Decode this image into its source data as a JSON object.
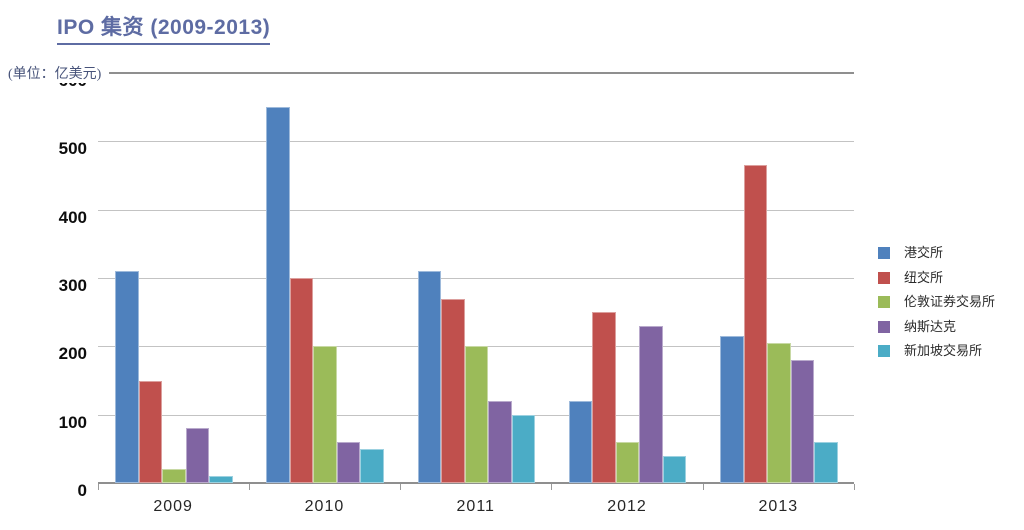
{
  "title": "IPO 集资 (2009-2013)",
  "unit_label": "(单位：亿美元)",
  "chart_data": {
    "type": "bar",
    "title": "IPO 集资 (2009-2013)",
    "unit": "(单位：亿美元)",
    "categories": [
      "2009",
      "2010",
      "2011",
      "2012",
      "2013"
    ],
    "series": [
      {
        "name": "港交所",
        "color": "#4F81BD",
        "values": [
          310,
          550,
          310,
          120,
          215
        ]
      },
      {
        "name": "纽交所",
        "color": "#C0504D",
        "values": [
          150,
          300,
          270,
          250,
          465
        ]
      },
      {
        "name": "伦敦证券交易所",
        "color": "#9BBB59",
        "values": [
          20,
          200,
          200,
          60,
          205
        ]
      },
      {
        "name": "纳斯达克",
        "color": "#8064A2",
        "values": [
          80,
          60,
          120,
          230,
          180
        ]
      },
      {
        "name": "新加坡交易所",
        "color": "#4BACC6",
        "values": [
          10,
          50,
          100,
          40,
          60
        ]
      }
    ],
    "xlabel": "",
    "ylabel": "亿美元",
    "ylim": [
      0,
      600
    ],
    "yticks": [
      0,
      100,
      200,
      300,
      400,
      500,
      600
    ],
    "grid": true,
    "legend_position": "right",
    "title_color": "#5E6CA3",
    "bar_colors_hex": [
      "#4F81BD",
      "#C0504D",
      "#9BBB59",
      "#8064A2",
      "#4BACC6"
    ]
  }
}
